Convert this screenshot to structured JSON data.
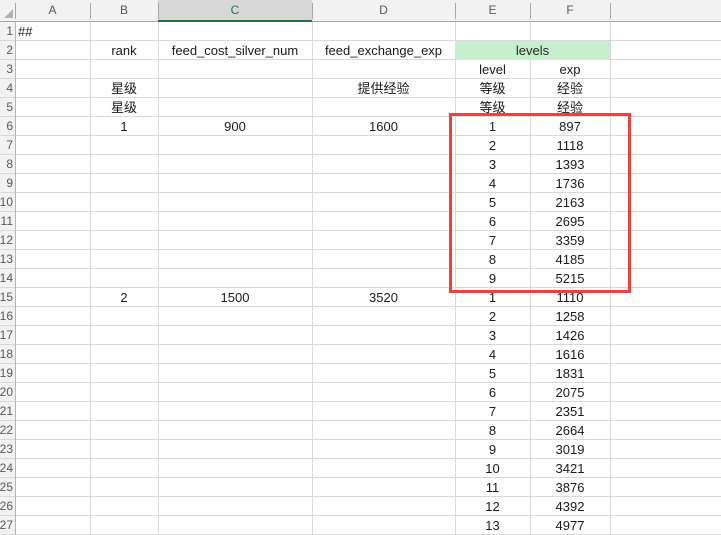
{
  "spreadsheet": {
    "column_headers": [
      "A",
      "B",
      "C",
      "D",
      "E",
      "F"
    ],
    "selected_column": "C",
    "row_headers": [
      1,
      2,
      3,
      4,
      5,
      6,
      7,
      8,
      9,
      10,
      11,
      12,
      13,
      14,
      15,
      16,
      17,
      18,
      19,
      20,
      21,
      22,
      23,
      24,
      25,
      26,
      27
    ],
    "merged_cell": {
      "row": 2,
      "cols": "E:F",
      "text": "levels",
      "fill": "#c6efce"
    },
    "rows": [
      {
        "n": 1,
        "cells": {
          "A": "##"
        }
      },
      {
        "n": 2,
        "cells": {
          "B": "rank",
          "C": "feed_cost_silver_num",
          "D": "feed_exchange_exp",
          "EF": "levels"
        }
      },
      {
        "n": 3,
        "cells": {
          "E": "level",
          "F": "exp"
        }
      },
      {
        "n": 4,
        "cells": {
          "B": "星级",
          "D": "提供经验",
          "E": "等级",
          "F": "经验"
        }
      },
      {
        "n": 5,
        "cells": {
          "B": "星级",
          "E": "等级",
          "F": "经验"
        }
      },
      {
        "n": 6,
        "cells": {
          "B": "1",
          "C": "900",
          "D": "1600",
          "E": "1",
          "F": "897"
        }
      },
      {
        "n": 7,
        "cells": {
          "E": "2",
          "F": "1118"
        }
      },
      {
        "n": 8,
        "cells": {
          "E": "3",
          "F": "1393"
        }
      },
      {
        "n": 9,
        "cells": {
          "E": "4",
          "F": "1736"
        }
      },
      {
        "n": 10,
        "cells": {
          "E": "5",
          "F": "2163"
        }
      },
      {
        "n": 11,
        "cells": {
          "E": "6",
          "F": "2695"
        }
      },
      {
        "n": 12,
        "cells": {
          "E": "7",
          "F": "3359"
        }
      },
      {
        "n": 13,
        "cells": {
          "E": "8",
          "F": "4185"
        }
      },
      {
        "n": 14,
        "cells": {
          "E": "9",
          "F": "5215"
        }
      },
      {
        "n": 15,
        "cells": {
          "B": "2",
          "C": "1500",
          "D": "3520",
          "E": "1",
          "F": "1110"
        }
      },
      {
        "n": 16,
        "cells": {
          "E": "2",
          "F": "1258"
        }
      },
      {
        "n": 17,
        "cells": {
          "E": "3",
          "F": "1426"
        }
      },
      {
        "n": 18,
        "cells": {
          "E": "4",
          "F": "1616"
        }
      },
      {
        "n": 19,
        "cells": {
          "E": "5",
          "F": "1831"
        }
      },
      {
        "n": 20,
        "cells": {
          "E": "6",
          "F": "2075"
        }
      },
      {
        "n": 21,
        "cells": {
          "E": "7",
          "F": "2351"
        }
      },
      {
        "n": 22,
        "cells": {
          "E": "8",
          "F": "2664"
        }
      },
      {
        "n": 23,
        "cells": {
          "E": "9",
          "F": "3019"
        }
      },
      {
        "n": 24,
        "cells": {
          "E": "10",
          "F": "3421"
        }
      },
      {
        "n": 25,
        "cells": {
          "E": "11",
          "F": "3876"
        }
      },
      {
        "n": 26,
        "cells": {
          "E": "12",
          "F": "4392"
        }
      },
      {
        "n": 27,
        "cells": {
          "E": "13",
          "F": "4977"
        }
      }
    ],
    "highlight_box": {
      "covers": "E6:F14",
      "color": "#f43e3c"
    },
    "colors": {
      "selected_header_accent": "#217346",
      "selected_header_fill": "#d7d7d7",
      "levels_fill": "#c6efce",
      "highlight_red": "#f43e3c",
      "gridline": "#d9d9d9",
      "header_fill": "#f2f2f2"
    }
  }
}
